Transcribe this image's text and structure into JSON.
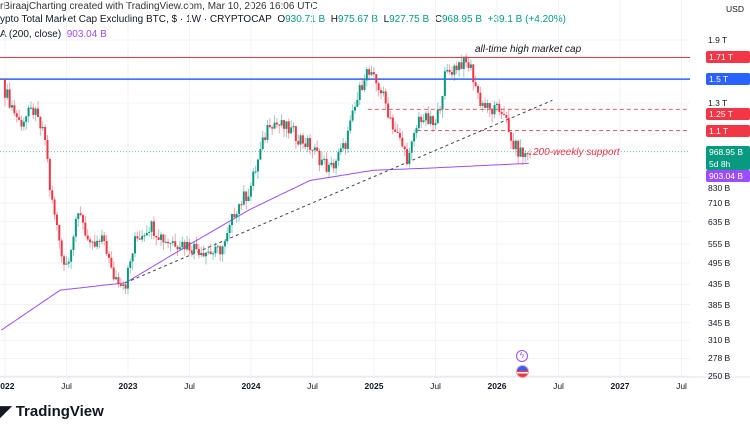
{
  "header": {
    "attribution": "rBiraajCharting created with TradingView.com, Mar 10, 2026 16:06 UTC",
    "title": "ypto Total Market Cap Excluding BTC, $ · 1W · CRYPTOCAP",
    "ohlc": {
      "o_label": "O",
      "o": "930.71 B",
      "h_label": "H",
      "h": "975.67 B",
      "l_label": "L",
      "l": "927.75 B",
      "c_label": "C",
      "c": "968.95 B",
      "change": "+39.1 B (+4.20%)"
    },
    "ma_label": "A (200, close)",
    "ma_value": "903.04 B"
  },
  "currency": "USD",
  "colors": {
    "up": "#089981",
    "down": "#f23645",
    "ma": "#9c4dff",
    "blue": "#2962ff",
    "red": "#f23645"
  },
  "chart_data": {
    "type": "candlestick",
    "scale": "log",
    "price_axis_ticks": [
      "1.9 T",
      "1.3 T",
      "830 B",
      "710 B",
      "635 B",
      "555 B",
      "495 B",
      "435 B",
      "385 B",
      "345 B",
      "310 B",
      "278 B",
      "250 B"
    ],
    "price_axis_values": [
      1900,
      1300,
      830,
      710,
      635,
      555,
      495,
      435,
      385,
      345,
      310,
      278,
      250
    ],
    "time_axis": [
      {
        "label": "2022",
        "year": 2022,
        "bold": true
      },
      {
        "label": "Jul",
        "year": 2022.5
      },
      {
        "label": "2023",
        "year": 2023,
        "bold": true
      },
      {
        "label": "Jul",
        "year": 2023.5
      },
      {
        "label": "2024",
        "year": 2024,
        "bold": true
      },
      {
        "label": "Jul",
        "year": 2024.5
      },
      {
        "label": "2025",
        "year": 2025,
        "bold": true
      },
      {
        "label": "Jul",
        "year": 2025.5
      },
      {
        "label": "2026",
        "year": 2026,
        "bold": true
      },
      {
        "label": "Jul",
        "year": 2026.5
      },
      {
        "label": "2027",
        "year": 2027,
        "bold": true
      },
      {
        "label": "Jul",
        "year": 2027.5
      }
    ],
    "price_path_billions": [
      [
        2021.98,
        1500
      ],
      [
        2022.0,
        1400
      ],
      [
        2022.12,
        1150
      ],
      [
        2022.23,
        1245
      ],
      [
        2022.33,
        1038
      ],
      [
        2022.37,
        746
      ],
      [
        2022.45,
        553
      ],
      [
        2022.49,
        480
      ],
      [
        2022.61,
        683
      ],
      [
        2022.69,
        537
      ],
      [
        2022.81,
        568
      ],
      [
        2022.87,
        460
      ],
      [
        2022.98,
        439
      ],
      [
        2023.06,
        568
      ],
      [
        2023.18,
        624
      ],
      [
        2023.3,
        568
      ],
      [
        2023.42,
        560
      ],
      [
        2023.59,
        537
      ],
      [
        2023.71,
        525
      ],
      [
        2023.79,
        553
      ],
      [
        2023.87,
        683
      ],
      [
        2023.99,
        769
      ],
      [
        2024.15,
        1172
      ],
      [
        2024.32,
        1100
      ],
      [
        2024.48,
        1000
      ],
      [
        2024.64,
        866
      ],
      [
        2024.76,
        1000
      ],
      [
        2024.93,
        1580
      ],
      [
        2025.05,
        1420
      ],
      [
        2025.17,
        1100
      ],
      [
        2025.28,
        922
      ],
      [
        2025.37,
        1200
      ],
      [
        2025.5,
        1130
      ],
      [
        2025.58,
        1540
      ],
      [
        2025.7,
        1660
      ],
      [
        2025.78,
        1630
      ],
      [
        2025.86,
        1320
      ],
      [
        2025.94,
        1240
      ],
      [
        2026.06,
        1240
      ],
      [
        2026.1,
        1040
      ],
      [
        2026.17,
        975
      ],
      [
        2026.22,
        944
      ],
      [
        2026.27,
        969
      ]
    ],
    "ma200_billions": [
      [
        2021.97,
        330
      ],
      [
        2022.45,
        420
      ],
      [
        2022.98,
        439
      ],
      [
        2023.5,
        553
      ],
      [
        2023.99,
        683
      ],
      [
        2024.48,
        814
      ],
      [
        2025.0,
        866
      ],
      [
        2025.45,
        877
      ],
      [
        2026.27,
        903
      ]
    ],
    "levels": [
      {
        "label": "1.71 T",
        "value": 1710,
        "style": "solid",
        "color": "#f23645"
      },
      {
        "label": "1.5 T",
        "value": 1500,
        "style": "solid",
        "color": "#2962ff"
      },
      {
        "label": "1.25 T",
        "value": 1250,
        "style": "dashed",
        "color": "#f23645",
        "from_year": 2024.95
      },
      {
        "label": "1.1 T",
        "value": 1100,
        "style": "dashed",
        "color": "#f23645",
        "from_year": 2025.35
      }
    ],
    "trendline": [
      [
        2022.98,
        439
      ],
      [
        2026.45,
        1320
      ]
    ],
    "last_price": {
      "label": "968.95 B",
      "countdown": "5d 8h",
      "value": 968.95
    },
    "ma_last": {
      "label": "903.04 B",
      "value": 903.04
    },
    "annotations": {
      "ath": "all-time high market cap",
      "support": "200-weekly support"
    }
  },
  "branding": "TradingView"
}
